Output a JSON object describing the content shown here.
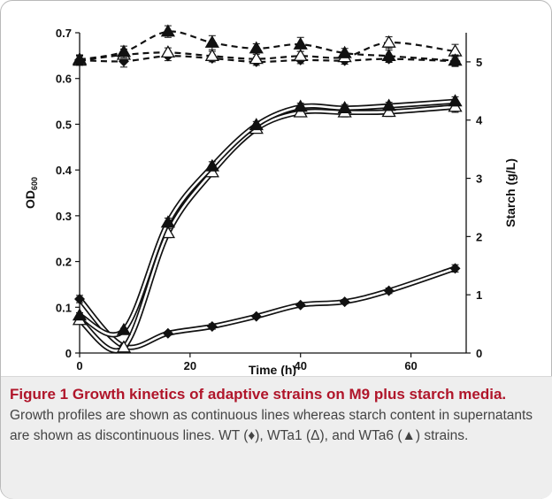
{
  "figure": {
    "caption_title": "Figure 1 Growth kinetics of adaptive strains on M9 plus starch media.",
    "caption_body": " Growth profiles are shown as continuous lines whereas starch content in supernatants are shown as discontinuous lines. WT (♦), WTa1 (Δ), and WTa6 (▲) strains."
  },
  "chart_data": {
    "type": "line",
    "title": "",
    "xlabel": "Time (h)",
    "ylabel_left": "OD",
    "ylabel_left_subscript": "600",
    "ylabel_right": "Starch (g/L)",
    "xlim": [
      0,
      70
    ],
    "ylim_left": [
      0,
      0.7
    ],
    "ylim_right": [
      0,
      5.5
    ],
    "x_ticks": [
      0,
      20,
      40,
      60
    ],
    "y_left_ticks": [
      0,
      0.1,
      0.2,
      0.3,
      0.4,
      0.5,
      0.6,
      0.7
    ],
    "y_right_ticks": [
      0,
      1,
      2,
      3,
      4,
      5
    ],
    "grid": false,
    "legend": "none",
    "series": [
      {
        "name": "WT",
        "marker": "diamond",
        "style": "solid",
        "axis": "left",
        "x": [
          0,
          8,
          16,
          24,
          32,
          40,
          48,
          56,
          68
        ],
        "y": [
          0.118,
          0.015,
          0.043,
          0.058,
          0.08,
          0.105,
          0.112,
          0.136,
          0.185
        ],
        "err": [
          0.008,
          0.004,
          0.004,
          0.006,
          0.004,
          0.004,
          0.005,
          0.006,
          0.008
        ]
      },
      {
        "name": "WTa1",
        "marker": "triangle-open",
        "style": "solid",
        "axis": "left",
        "x": [
          0,
          8,
          16,
          24,
          32,
          40,
          48,
          56,
          68
        ],
        "y": [
          0.072,
          0.012,
          0.262,
          0.395,
          0.49,
          0.526,
          0.526,
          0.527,
          0.538
        ],
        "err": [
          0.006,
          0.003,
          0.01,
          0.01,
          0.008,
          0.008,
          0.01,
          0.01,
          0.012
        ]
      },
      {
        "name": "WTa6",
        "marker": "triangle-filled",
        "style": "solid",
        "axis": "left",
        "x": [
          0,
          8,
          16,
          24,
          32,
          40,
          48,
          56,
          68
        ],
        "y": [
          0.082,
          0.05,
          0.285,
          0.408,
          0.498,
          0.538,
          0.535,
          0.54,
          0.55
        ],
        "err": [
          0.006,
          0.004,
          0.01,
          0.01,
          0.008,
          0.008,
          0.008,
          0.008,
          0.01
        ]
      },
      {
        "name": "WT",
        "marker": "diamond",
        "style": "dashed",
        "axis": "right",
        "x": [
          0,
          8,
          16,
          24,
          32,
          40,
          48,
          56,
          68
        ],
        "y": [
          5.03,
          5.01,
          5.1,
          5.06,
          5.0,
          5.03,
          5.02,
          5.05,
          5.01
        ],
        "err": [
          0.08,
          0.1,
          0.08,
          0.06,
          0.06,
          0.06,
          0.06,
          0.06,
          0.08
        ]
      },
      {
        "name": "WTa1",
        "marker": "triangle-open",
        "style": "dashed",
        "axis": "right",
        "x": [
          0,
          8,
          16,
          24,
          32,
          40,
          48,
          56,
          68
        ],
        "y": [
          5.02,
          5.12,
          5.16,
          5.1,
          5.05,
          5.1,
          5.08,
          5.33,
          5.18
        ],
        "err": [
          0.08,
          0.1,
          0.08,
          0.08,
          0.08,
          0.08,
          0.08,
          0.1,
          0.12
        ]
      },
      {
        "name": "WTa6",
        "marker": "triangle-filled",
        "style": "dashed",
        "axis": "right",
        "x": [
          0,
          8,
          16,
          24,
          32,
          40,
          48,
          56,
          68
        ],
        "y": [
          5.04,
          5.17,
          5.52,
          5.33,
          5.23,
          5.3,
          5.15,
          5.1,
          5.02
        ],
        "err": [
          0.08,
          0.1,
          0.1,
          0.12,
          0.08,
          0.12,
          0.08,
          0.1,
          0.1
        ]
      }
    ]
  }
}
